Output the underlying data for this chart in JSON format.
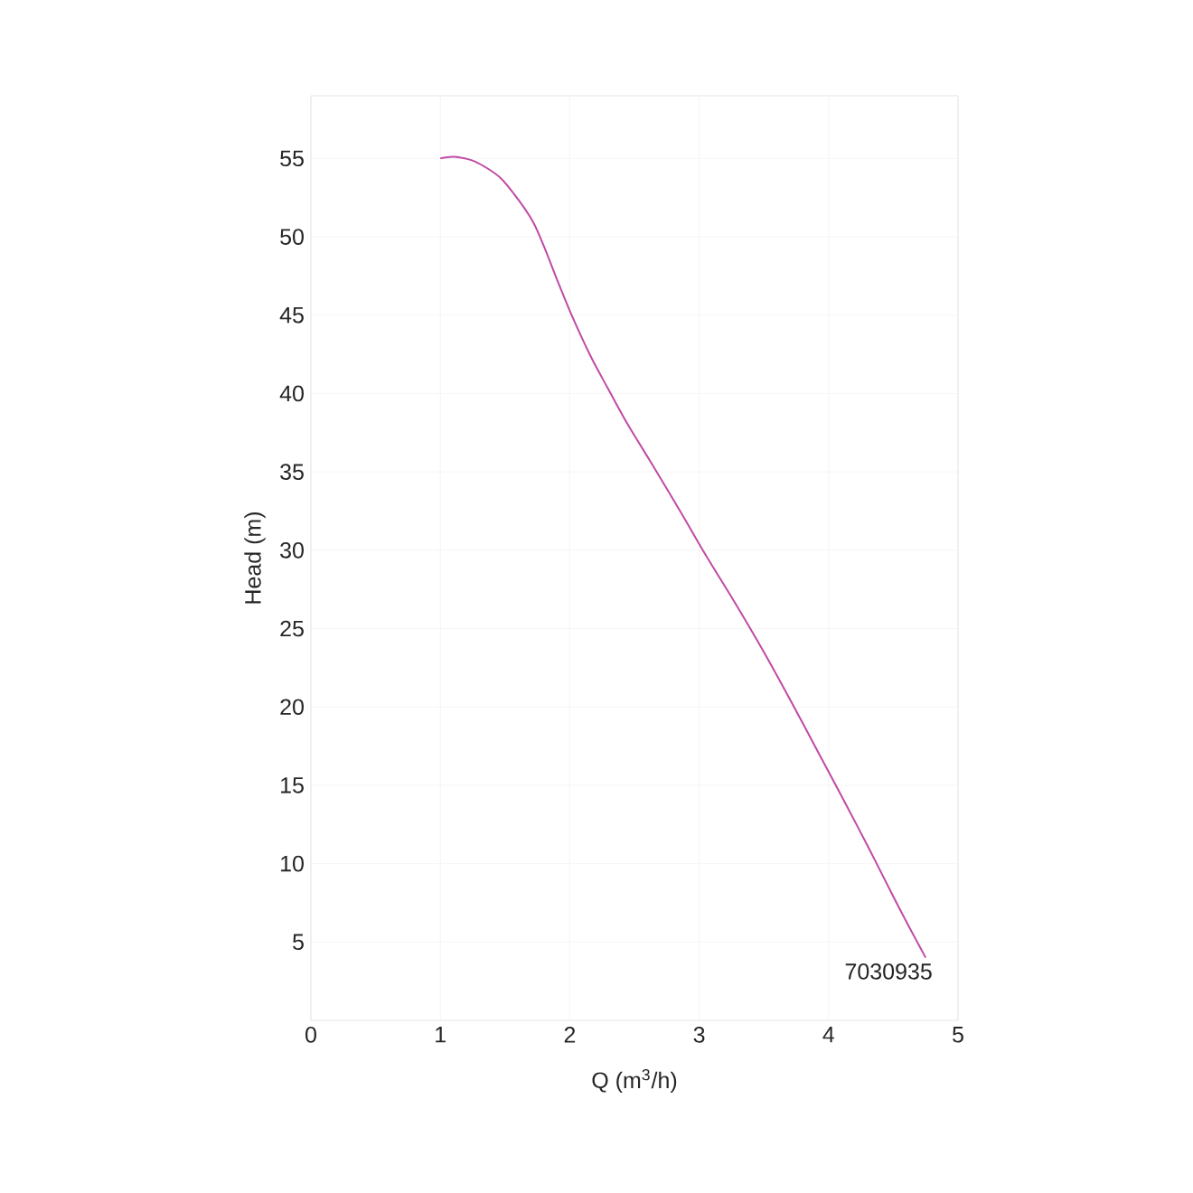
{
  "chart_data": {
    "type": "line",
    "xlabel": "Q (m$^{3}$/h)",
    "ylabel": "Head (m)",
    "xlim": [
      0,
      5
    ],
    "ylim": [
      0,
      59
    ],
    "xticks": [
      0,
      1,
      2,
      3,
      4,
      5
    ],
    "yticks": [
      5,
      10,
      15,
      20,
      25,
      30,
      35,
      40,
      45,
      50,
      55
    ],
    "grid": true,
    "series": [
      {
        "name": "7030935",
        "color": "#c04aa5",
        "x": [
          1.0,
          1.11,
          1.27,
          1.46,
          1.6,
          1.72,
          1.81,
          1.91,
          2.02,
          2.16,
          2.29,
          2.45,
          2.65,
          2.86,
          3.05,
          3.28,
          3.5,
          3.72,
          3.92,
          4.12,
          4.31,
          4.5,
          4.62,
          4.75
        ],
        "values": [
          55.0,
          55.1,
          54.8,
          53.8,
          52.4,
          50.9,
          49.2,
          47.1,
          44.9,
          42.4,
          40.4,
          38.0,
          35.3,
          32.4,
          29.7,
          26.6,
          23.5,
          20.2,
          17.1,
          14.0,
          11.0,
          7.9,
          6.0,
          4.0
        ]
      }
    ]
  }
}
